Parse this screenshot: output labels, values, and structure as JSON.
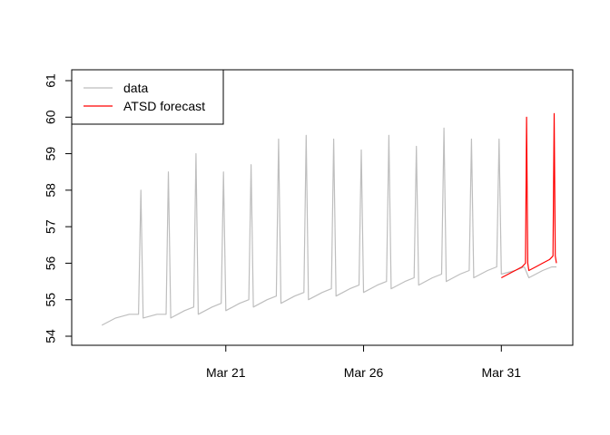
{
  "chart_data": {
    "type": "line",
    "title": "",
    "xlabel": "",
    "ylabel": "",
    "xlim": [
      "2024-03-16",
      "2024-04-02"
    ],
    "ylim": [
      54,
      61
    ],
    "x_ticks": [
      {
        "date": "2024-03-21",
        "label": "Mar 21"
      },
      {
        "date": "2024-03-26",
        "label": "Mar 26"
      },
      {
        "date": "2024-03-31",
        "label": "Mar 31"
      }
    ],
    "y_ticks": [
      54,
      55,
      56,
      57,
      58,
      59,
      60,
      61
    ],
    "legend": {
      "position": "top-left",
      "entries": [
        {
          "label": "data",
          "color": "#bebebe"
        },
        {
          "label": "ATSD forecast",
          "color": "#ff0000"
        }
      ]
    },
    "series": [
      {
        "name": "data",
        "color": "#bebebe",
        "points": [
          [
            "2024-03-16T12:00",
            54.3
          ],
          [
            "2024-03-17T00:00",
            54.5
          ],
          [
            "2024-03-17T12:00",
            54.6
          ],
          [
            "2024-03-17T20:00",
            54.6
          ],
          [
            "2024-03-17T22:00",
            58.0
          ],
          [
            "2024-03-18T00:00",
            54.5
          ],
          [
            "2024-03-18T12:00",
            54.6
          ],
          [
            "2024-03-18T20:00",
            54.6
          ],
          [
            "2024-03-18T22:00",
            58.5
          ],
          [
            "2024-03-19T00:00",
            54.5
          ],
          [
            "2024-03-19T12:00",
            54.7
          ],
          [
            "2024-03-19T20:00",
            54.8
          ],
          [
            "2024-03-19T22:00",
            59.0
          ],
          [
            "2024-03-20T00:00",
            54.6
          ],
          [
            "2024-03-20T12:00",
            54.8
          ],
          [
            "2024-03-20T20:00",
            54.9
          ],
          [
            "2024-03-20T22:00",
            58.5
          ],
          [
            "2024-03-21T00:00",
            54.7
          ],
          [
            "2024-03-21T12:00",
            54.9
          ],
          [
            "2024-03-21T20:00",
            55.0
          ],
          [
            "2024-03-21T22:00",
            58.7
          ],
          [
            "2024-03-22T00:00",
            54.8
          ],
          [
            "2024-03-22T12:00",
            55.0
          ],
          [
            "2024-03-22T20:00",
            55.1
          ],
          [
            "2024-03-22T22:00",
            59.4
          ],
          [
            "2024-03-23T00:00",
            54.9
          ],
          [
            "2024-03-23T12:00",
            55.1
          ],
          [
            "2024-03-23T20:00",
            55.2
          ],
          [
            "2024-03-23T22:00",
            59.5
          ],
          [
            "2024-03-24T00:00",
            55.0
          ],
          [
            "2024-03-24T12:00",
            55.2
          ],
          [
            "2024-03-24T20:00",
            55.3
          ],
          [
            "2024-03-24T22:00",
            59.4
          ],
          [
            "2024-03-25T00:00",
            55.1
          ],
          [
            "2024-03-25T12:00",
            55.3
          ],
          [
            "2024-03-25T20:00",
            55.4
          ],
          [
            "2024-03-25T22:00",
            59.1
          ],
          [
            "2024-03-26T00:00",
            55.2
          ],
          [
            "2024-03-26T12:00",
            55.4
          ],
          [
            "2024-03-26T20:00",
            55.5
          ],
          [
            "2024-03-26T22:00",
            59.5
          ],
          [
            "2024-03-27T00:00",
            55.3
          ],
          [
            "2024-03-27T12:00",
            55.5
          ],
          [
            "2024-03-27T20:00",
            55.6
          ],
          [
            "2024-03-27T22:00",
            59.2
          ],
          [
            "2024-03-28T00:00",
            55.4
          ],
          [
            "2024-03-28T12:00",
            55.6
          ],
          [
            "2024-03-28T20:00",
            55.7
          ],
          [
            "2024-03-28T22:00",
            59.7
          ],
          [
            "2024-03-29T00:00",
            55.5
          ],
          [
            "2024-03-29T12:00",
            55.7
          ],
          [
            "2024-03-29T20:00",
            55.8
          ],
          [
            "2024-03-29T22:00",
            59.4
          ],
          [
            "2024-03-30T00:00",
            55.6
          ],
          [
            "2024-03-30T12:00",
            55.8
          ],
          [
            "2024-03-30T20:00",
            55.9
          ],
          [
            "2024-03-30T22:00",
            59.4
          ],
          [
            "2024-03-31T00:00",
            55.7
          ],
          [
            "2024-03-31T12:00",
            55.8
          ],
          [
            "2024-03-31T20:00",
            55.9
          ],
          [
            "2024-04-01T00:00",
            55.6
          ],
          [
            "2024-04-01T12:00",
            55.8
          ],
          [
            "2024-04-01T20:00",
            55.9
          ],
          [
            "2024-04-02T00:00",
            55.9
          ]
        ]
      },
      {
        "name": "ATSD forecast",
        "color": "#ff0000",
        "points": [
          [
            "2024-03-31T00:00",
            55.6
          ],
          [
            "2024-03-31T06:00",
            55.7
          ],
          [
            "2024-03-31T12:00",
            55.8
          ],
          [
            "2024-03-31T18:00",
            55.9
          ],
          [
            "2024-03-31T21:00",
            56.0
          ],
          [
            "2024-03-31T22:00",
            60.0
          ],
          [
            "2024-03-31T23:00",
            56.0
          ],
          [
            "2024-04-01T00:00",
            55.8
          ],
          [
            "2024-04-01T06:00",
            55.9
          ],
          [
            "2024-04-01T12:00",
            56.0
          ],
          [
            "2024-04-01T18:00",
            56.1
          ],
          [
            "2024-04-01T21:00",
            56.2
          ],
          [
            "2024-04-01T22:00",
            60.1
          ],
          [
            "2024-04-01T23:00",
            56.2
          ],
          [
            "2024-04-02T00:00",
            56.0
          ]
        ]
      }
    ]
  }
}
